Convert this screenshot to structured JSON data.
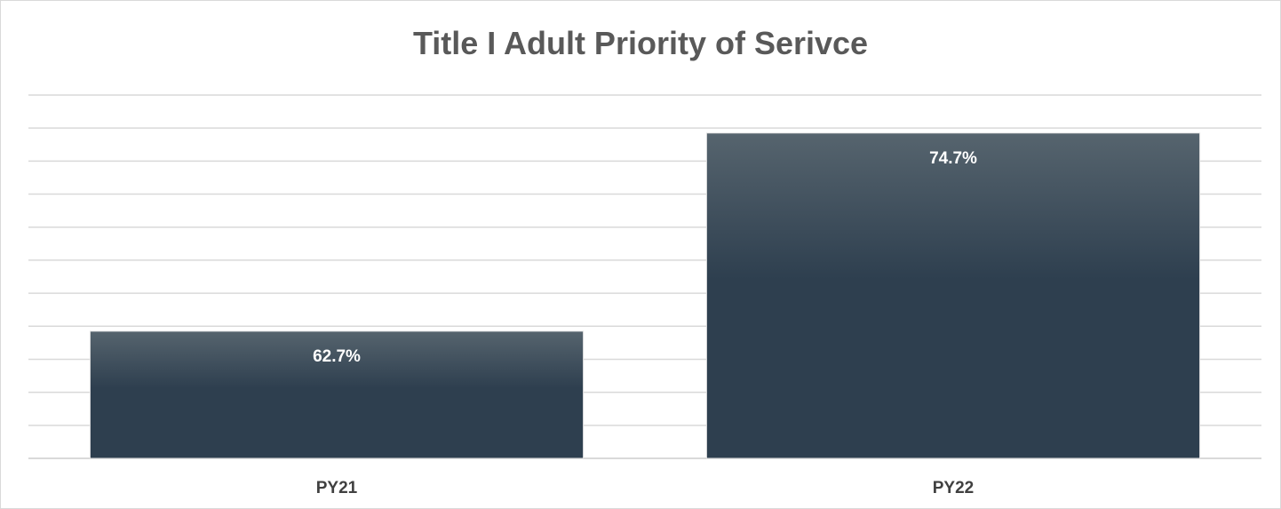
{
  "chart_data": {
    "type": "bar",
    "title": "Title I Adult Priority of Serivce",
    "categories": [
      "PY21",
      "PY22"
    ],
    "values": [
      62.7,
      74.7
    ],
    "data_labels": [
      "62.7%",
      "74.7%"
    ],
    "xlabel": "",
    "ylabel": "",
    "ylim": [
      55,
      77
    ],
    "y_axis_labels_shown": false,
    "grid": true,
    "legend": "none",
    "colors": {
      "bar_top": "#56646e",
      "bar_bottom": "#2e3f4f",
      "grid": "#d9d9d9"
    }
  }
}
